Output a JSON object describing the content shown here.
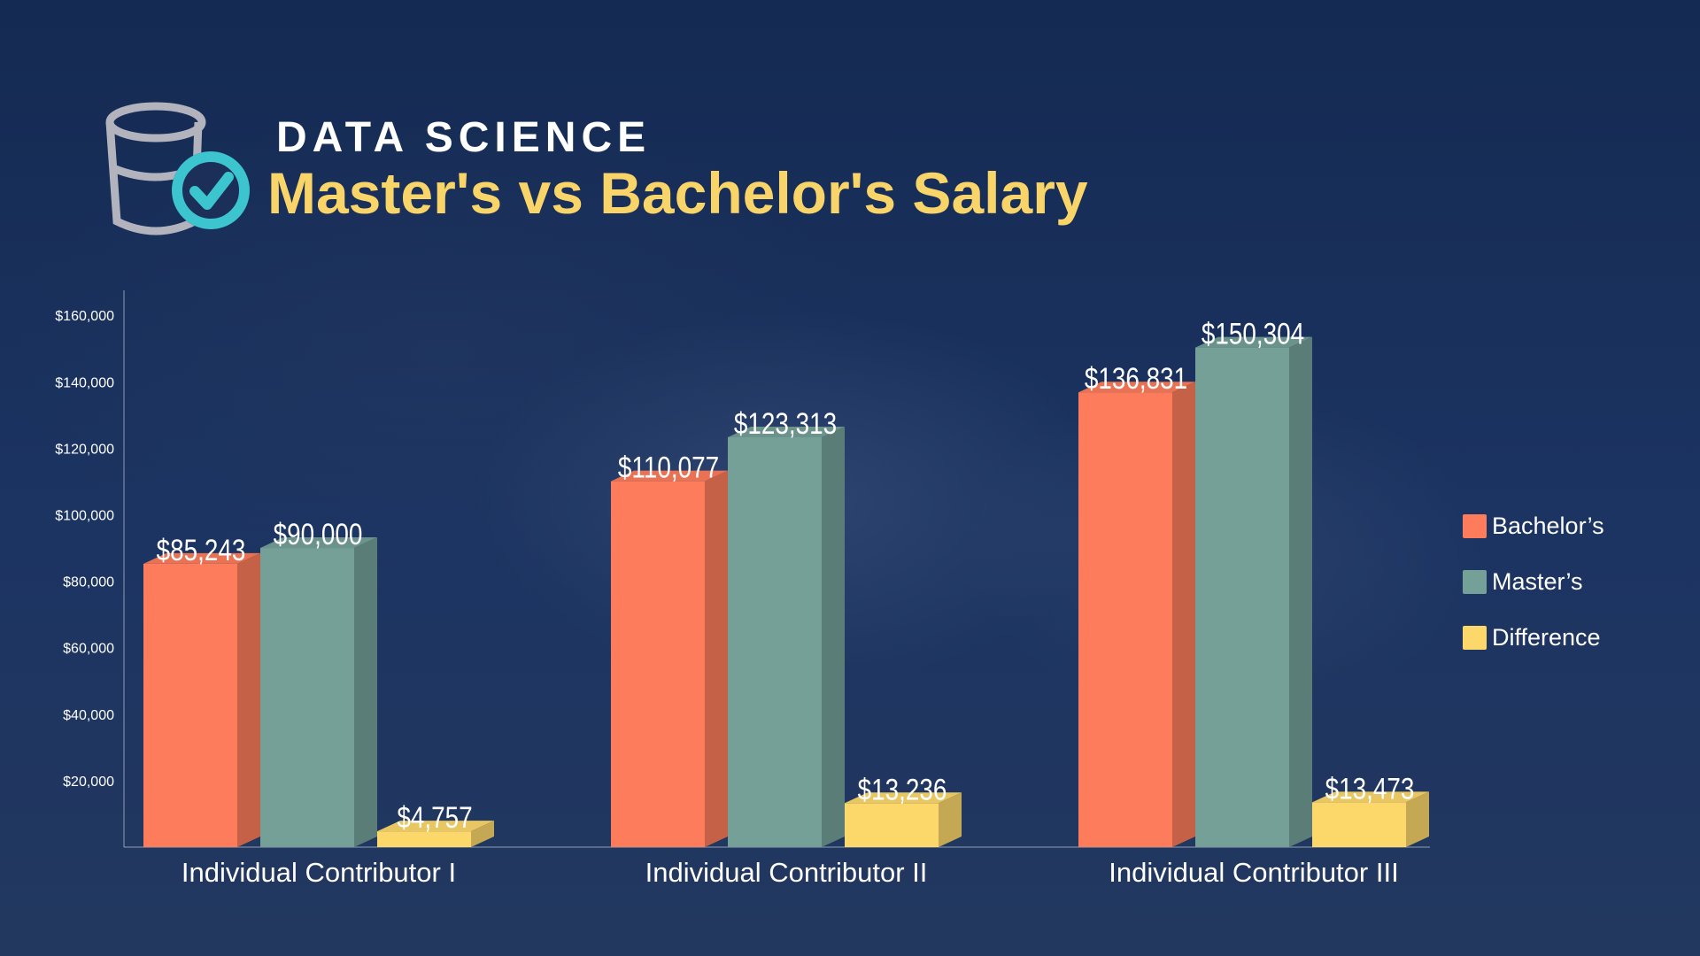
{
  "header": {
    "eyebrow": "DATA SCIENCE",
    "title": "Master's vs Bachelor's Salary",
    "logo_icon": "database-check-icon"
  },
  "colors": {
    "bachelors": "#fd7c5b",
    "masters": "#74a098",
    "difference": "#fcd86b",
    "title": "#f9d468"
  },
  "chart_data": {
    "type": "bar",
    "title": "",
    "categories": [
      "Individual Contributor I",
      "Individual Contributor II",
      "Individual Contributor III"
    ],
    "series": [
      {
        "name": "Bachelor’s",
        "values": [
          85243,
          110077,
          136831
        ],
        "labels": [
          "$85,243",
          "$110,077",
          "$136,831"
        ]
      },
      {
        "name": "Master’s",
        "values": [
          90000,
          123313,
          150304
        ],
        "labels": [
          "$90,000",
          "$123,313",
          "$150,304"
        ]
      },
      {
        "name": "Difference",
        "values": [
          4757,
          13236,
          13473
        ],
        "labels": [
          "$4,757",
          "$13,236",
          "$13,473"
        ]
      }
    ],
    "ylim": [
      0,
      170000
    ],
    "yticks": [
      20000,
      40000,
      60000,
      80000,
      100000,
      120000,
      140000,
      160000
    ],
    "ytick_labels": [
      "$20,000",
      "$40,000",
      "$60,000",
      "$80,000",
      "$100,000",
      "$120,000",
      "$140,000",
      "$160,000"
    ],
    "legend_position": "right",
    "grid": false,
    "style": "3d-bars"
  }
}
